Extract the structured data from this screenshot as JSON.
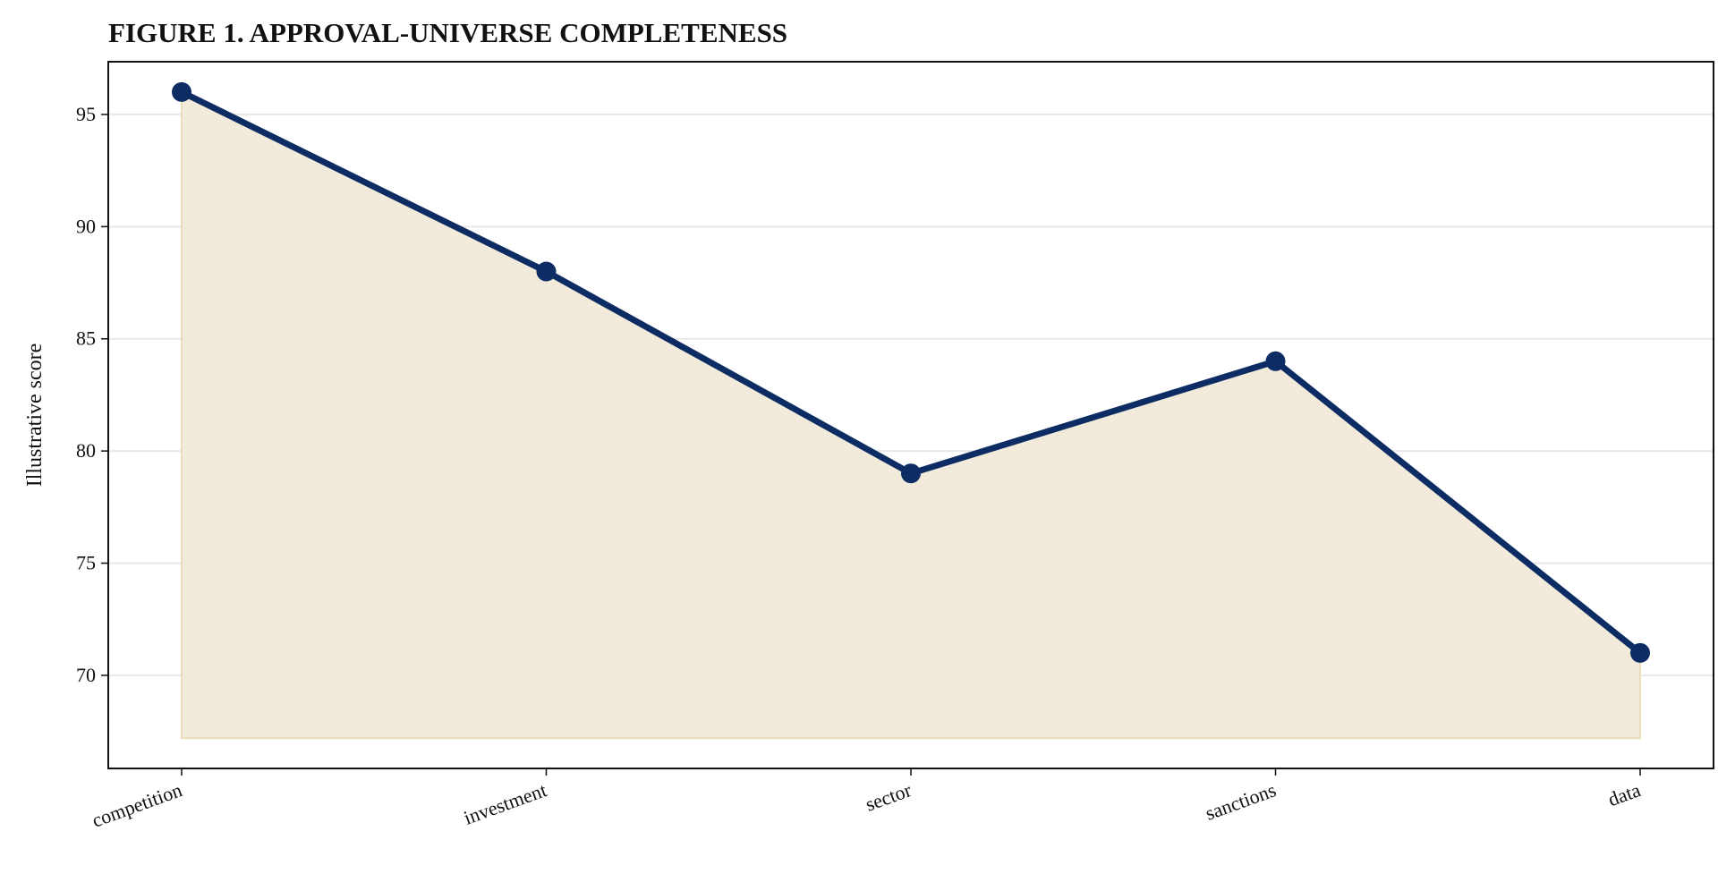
{
  "chart_data": {
    "type": "line",
    "title": "FIGURE 1. APPROVAL-UNIVERSE COMPLETENESS",
    "y_label": "Illustrative score",
    "categories": [
      "competition",
      "investment",
      "sector",
      "sanctions",
      "data"
    ],
    "series": [
      {
        "name": "Illustrative score",
        "color": "#0c2c63",
        "values": [
          96,
          88,
          79,
          84,
          71
        ]
      }
    ],
    "fill_color": "#f2ebdb",
    "fill_to": 67.2,
    "ylim": [
      65.85,
      97.35
    ],
    "yticks": [
      70,
      75,
      80,
      85,
      90,
      95
    ],
    "grid": true
  }
}
